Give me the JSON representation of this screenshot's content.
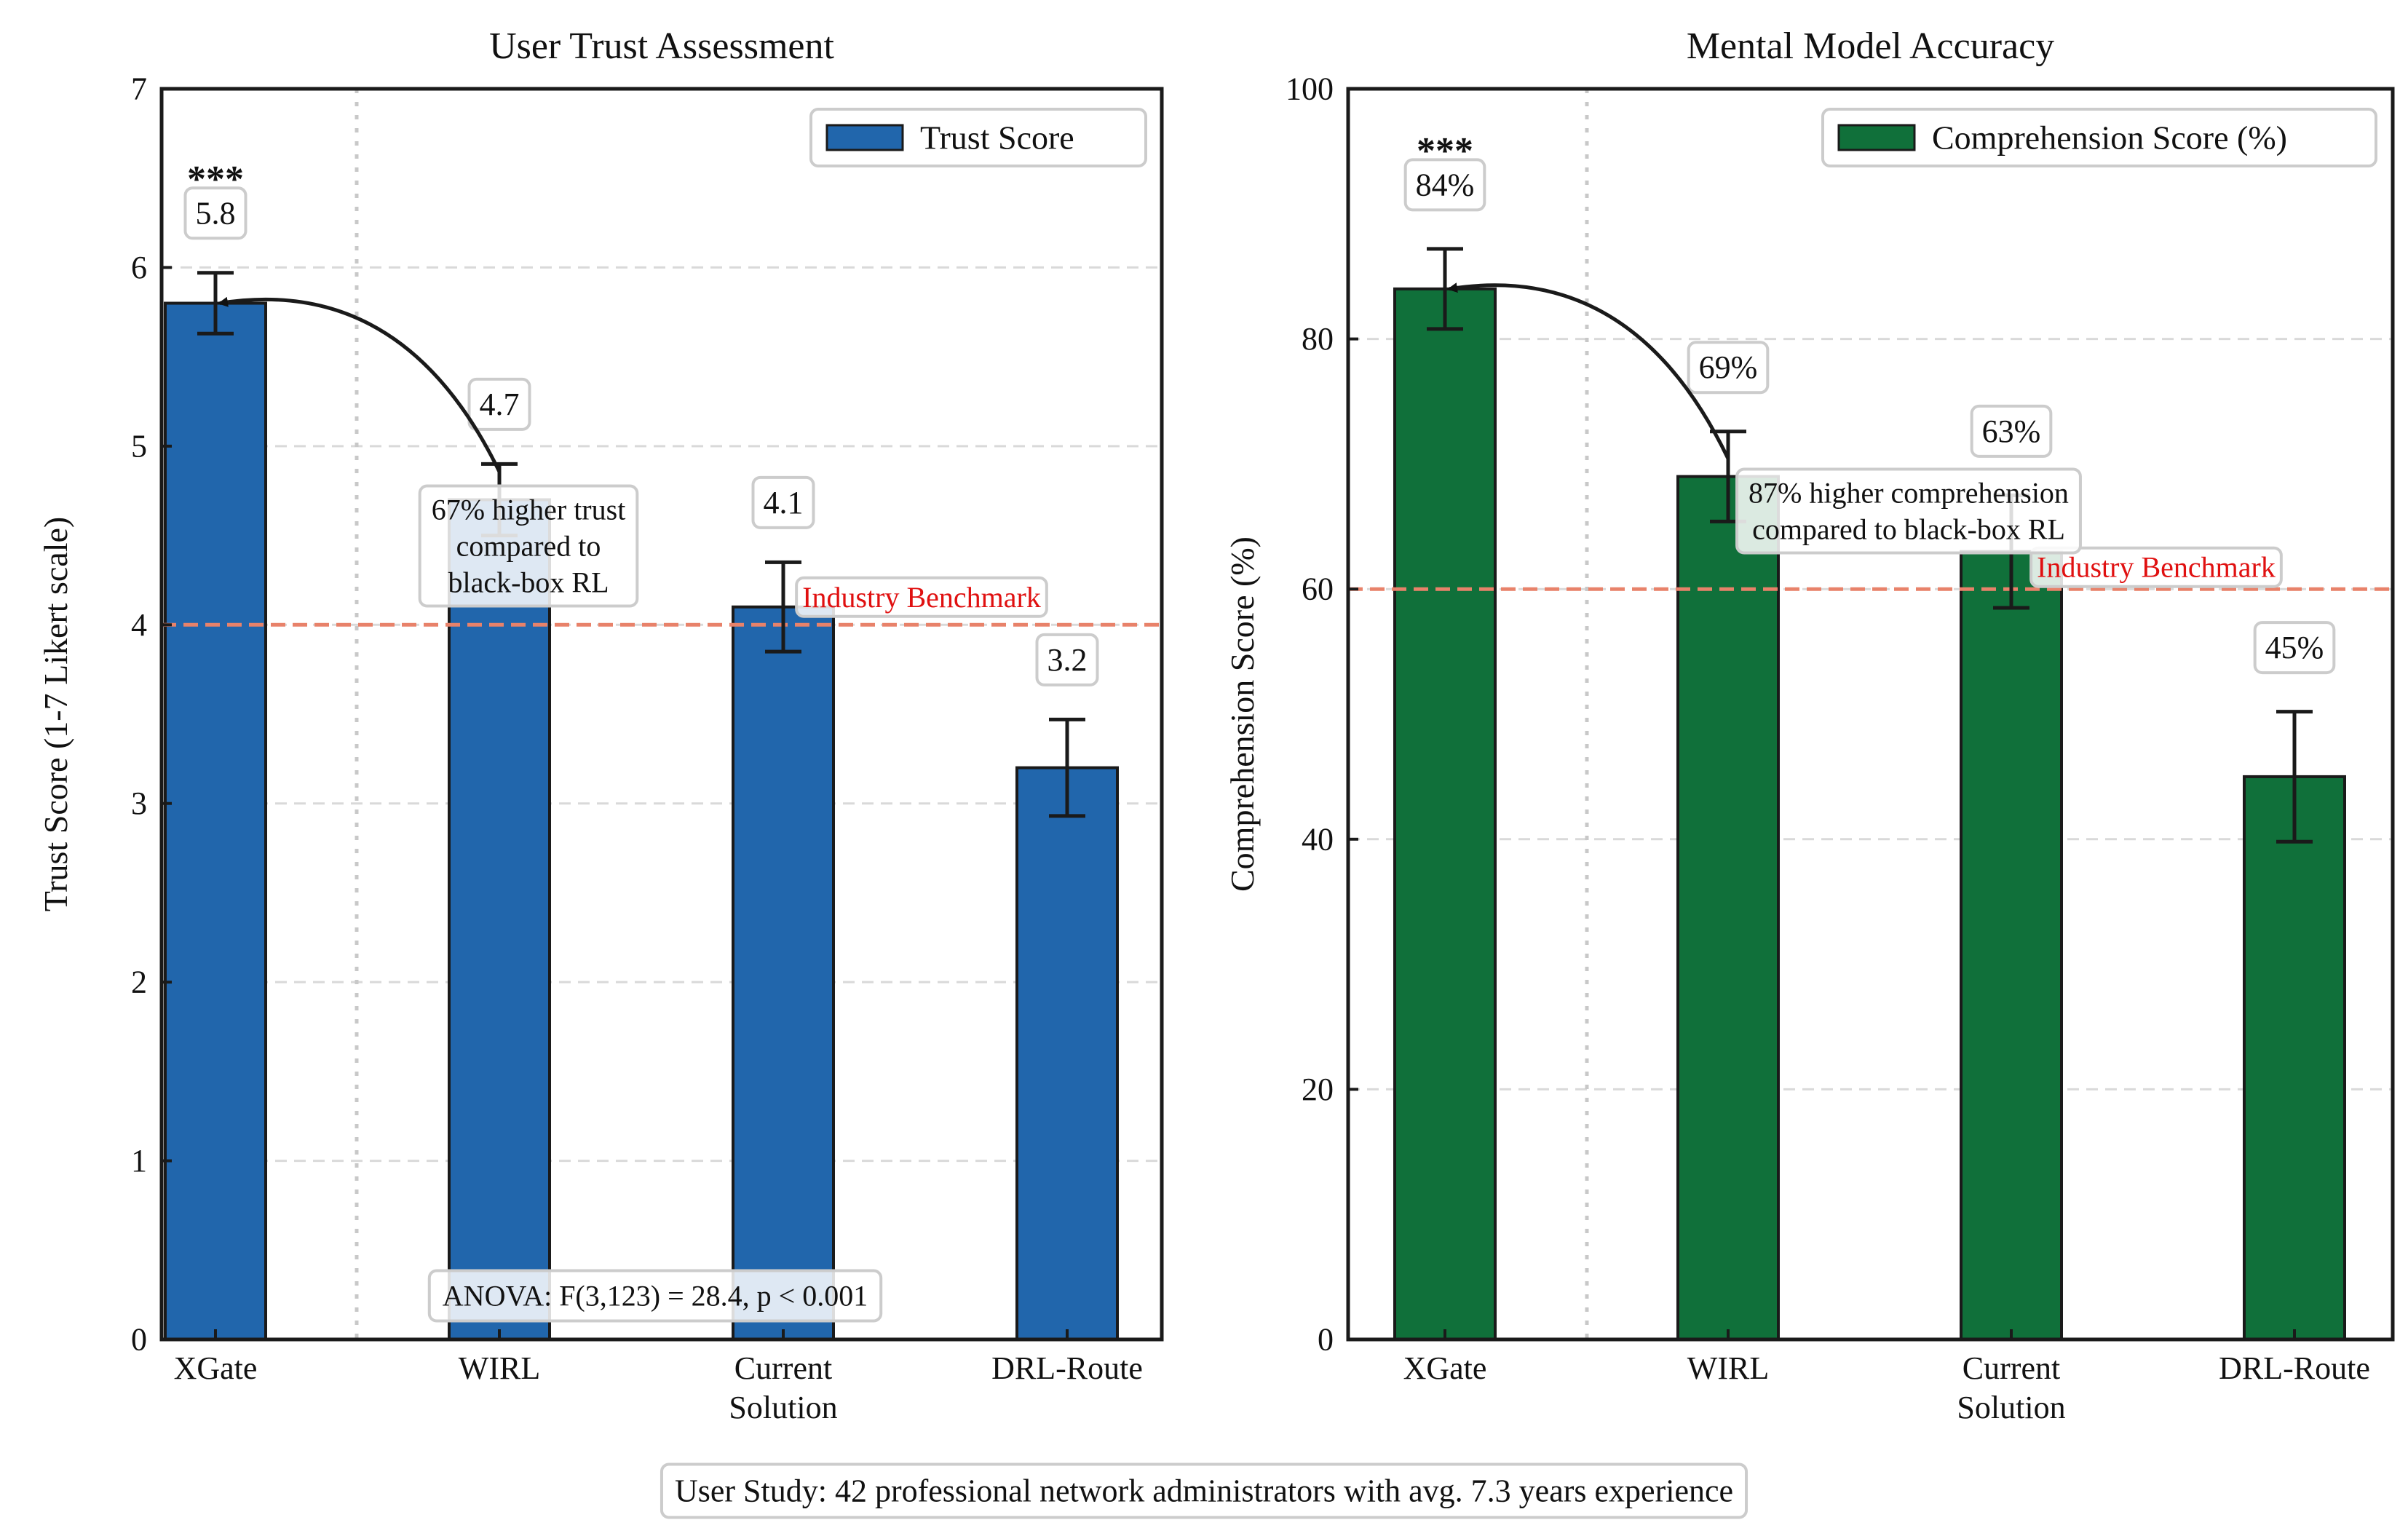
{
  "footer": "User Study: 42 professional network administrators with avg. 7.3 years experience",
  "chart_data": [
    {
      "type": "bar",
      "title": "User Trust Assessment",
      "xlabel": "",
      "ylabel": "Trust Score (1-7 Likert scale)",
      "ylim": [
        0,
        7
      ],
      "yticks": [
        "0",
        "1",
        "2",
        "3",
        "4",
        "5",
        "6",
        "7"
      ],
      "categories": [
        [
          "XGate"
        ],
        [
          "WIRL"
        ],
        [
          "Current",
          "Solution"
        ],
        [
          "DRL-Route"
        ]
      ],
      "series": [
        {
          "name": "Trust Score",
          "color": "#2166ac",
          "values": [
            5.8,
            4.7,
            4.1,
            3.2
          ],
          "errors": [
            0.17,
            0.2,
            0.25,
            0.27
          ],
          "value_labels": [
            "5.8",
            "4.7",
            "4.1",
            "3.2"
          ]
        }
      ],
      "legend_position": "top-right",
      "grid": "y-dashed",
      "benchmark": {
        "value": 4.0,
        "label": "Industry Benchmark",
        "color": "#e8826a"
      },
      "significance": {
        "category_index": 0,
        "label": "***"
      },
      "annotation": {
        "lines": [
          "67% higher trust",
          "compared to",
          "black-box RL"
        ],
        "from_index": 1,
        "to_index": 0
      },
      "stat_box": "ANOVA: F(3,123) = 28.4, p < 0.001"
    },
    {
      "type": "bar",
      "title": "Mental Model Accuracy",
      "xlabel": "",
      "ylabel": "Comprehension Score (%)",
      "ylim": [
        0,
        100
      ],
      "yticks": [
        "0",
        "20",
        "40",
        "60",
        "80",
        "100"
      ],
      "categories": [
        [
          "XGate"
        ],
        [
          "WIRL"
        ],
        [
          "Current",
          "Solution"
        ],
        [
          "DRL-Route"
        ]
      ],
      "series": [
        {
          "name": "Comprehension Score (%)",
          "color": "#10703a",
          "values": [
            84,
            69,
            63,
            45
          ],
          "errors": [
            3.2,
            3.6,
            4.5,
            5.2
          ],
          "value_labels": [
            "84%",
            "69%",
            "63%",
            "45%"
          ]
        }
      ],
      "legend_position": "top-right",
      "grid": "y-dashed",
      "benchmark": {
        "value": 60,
        "label": "Industry Benchmark",
        "color": "#e8826a"
      },
      "significance": {
        "category_index": 0,
        "label": "***"
      },
      "annotation": {
        "lines": [
          "87% higher comprehension",
          "compared to black-box RL"
        ],
        "from_index": 1,
        "to_index": 0
      },
      "stat_box": ""
    }
  ]
}
